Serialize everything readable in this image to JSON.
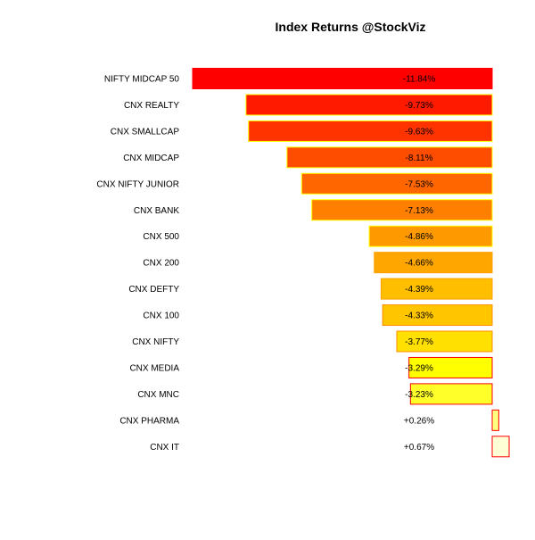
{
  "chart_data": {
    "type": "bar",
    "orientation": "horizontal",
    "title": "Index Returns @StockViz",
    "xlabel": "",
    "ylabel": "",
    "grid": false,
    "legend": "none",
    "xlim": [
      -11.84,
      0.67
    ],
    "categories": [
      "NIFTY MIDCAP 50",
      "CNX REALTY",
      "CNX SMALLCAP",
      "CNX MIDCAP",
      "CNX NIFTY JUNIOR",
      "CNX BANK",
      "CNX 500",
      "CNX 200",
      "CNX DEFTY",
      "CNX 100",
      "CNX NIFTY",
      "CNX MEDIA",
      "CNX MNC",
      "CNX PHARMA",
      "CNX IT"
    ],
    "values": [
      -11.84,
      -9.73,
      -9.63,
      -8.11,
      -7.53,
      -7.13,
      -4.86,
      -4.66,
      -4.39,
      -4.33,
      -3.77,
      -3.29,
      -3.23,
      0.26,
      0.67
    ],
    "value_labels": [
      "-11.84%",
      "-9.73%",
      "-9.63%",
      "-8.11%",
      "-7.53%",
      "-7.13%",
      "-4.86%",
      "-4.66%",
      "-4.39%",
      "-4.33%",
      "-3.77%",
      "-3.29%",
      "-3.23%",
      "+0.26%",
      "+0.67%"
    ],
    "fill_colors": [
      "#FF0000",
      "#FF1A00",
      "#FF3300",
      "#FF4D00",
      "#FF6600",
      "#FF8000",
      "#FF9900",
      "#FFA600",
      "#FFBF00",
      "#FFC600",
      "#FFE000",
      "#FFFF00",
      "#FFFF2A",
      "#FFFF80",
      "#FFFFD5"
    ],
    "border_colors": [
      "#FF0000",
      "#FFFF00",
      "#FFFF00",
      "#FFFF00",
      "#FFFF00",
      "#FFFF00",
      "#FFFF00",
      "#FFA000",
      "#FFA000",
      "#FF8C00",
      "#FF8C00",
      "#FF0000",
      "#FF0000",
      "#FF0000",
      "#FF0000"
    ]
  }
}
